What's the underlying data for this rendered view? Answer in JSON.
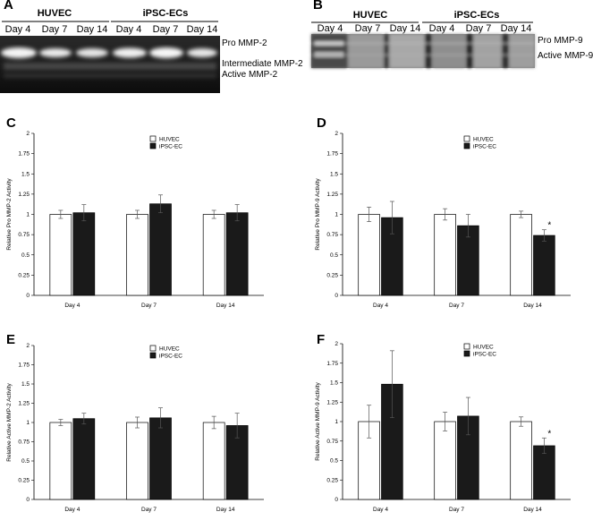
{
  "panels": {
    "a": {
      "letter": "A",
      "groups": [
        "HUVEC",
        "iPSC-ECs"
      ],
      "lanes": [
        "Day 4",
        "Day 7",
        "Day 14",
        "Day 4",
        "Day 7",
        "Day 14"
      ],
      "band_labels": [
        "Pro MMP-2",
        "Intermediate MMP-2",
        "Active MMP-2"
      ]
    },
    "b": {
      "letter": "B",
      "groups": [
        "HUVEC",
        "iPSC-ECs"
      ],
      "lanes": [
        "Day 4",
        "Day 7",
        "Day 14",
        "Day 4",
        "Day 7",
        "Day 14"
      ],
      "band_labels": [
        "Pro MMP-9",
        "Active MMP-9"
      ]
    }
  },
  "colors": {
    "huvec_fill": "#ffffff",
    "ipsc_fill": "#1a1a1a",
    "gel_dark": "#141414",
    "axis": "#000000"
  },
  "chart_data": [
    {
      "id": "C",
      "type": "bar",
      "ylabel": "Relative Pro MMP-2 Activity",
      "categories": [
        "Day 4",
        "Day 7",
        "Day 14"
      ],
      "ylim": [
        0,
        2
      ],
      "yticks": [
        "0",
        "0.25",
        "0.5",
        "0.75",
        "1",
        "1.25",
        "1.5",
        "1.75",
        "2"
      ],
      "series": [
        {
          "name": "HUVEC",
          "values": [
            1.0,
            1.0,
            1.0
          ],
          "errors": [
            0.05,
            0.05,
            0.05
          ]
        },
        {
          "name": "iPSC-EC",
          "values": [
            1.02,
            1.13,
            1.02
          ],
          "errors": [
            0.1,
            0.11,
            0.1
          ]
        }
      ],
      "significance": [
        "",
        "",
        ""
      ]
    },
    {
      "id": "D",
      "type": "bar",
      "ylabel": "Relative Pro MMP-9 Activity",
      "categories": [
        "Day 4",
        "Day 7",
        "Day 14"
      ],
      "ylim": [
        0,
        2
      ],
      "yticks": [
        "0",
        "0.25",
        "0.5",
        "0.75",
        "1",
        "1.25",
        "1.5",
        "1.75",
        "2"
      ],
      "series": [
        {
          "name": "HUVEC",
          "values": [
            1.0,
            1.0,
            1.0
          ],
          "errors": [
            0.09,
            0.07,
            0.04
          ]
        },
        {
          "name": "iPSC-EC",
          "values": [
            0.96,
            0.86,
            0.74
          ],
          "errors": [
            0.2,
            0.14,
            0.07
          ]
        }
      ],
      "significance": [
        "",
        "",
        "*"
      ]
    },
    {
      "id": "E",
      "type": "bar",
      "ylabel": "Relative Active MMP-2 Activity",
      "categories": [
        "Day 4",
        "Day 7",
        "Day 14"
      ],
      "ylim": [
        0,
        2
      ],
      "yticks": [
        "0",
        "0.25",
        "0.5",
        "0.75",
        "1",
        "1.25",
        "1.5",
        "1.75",
        "2"
      ],
      "series": [
        {
          "name": "HUVEC",
          "values": [
            1.0,
            1.0,
            1.0
          ],
          "errors": [
            0.04,
            0.07,
            0.08
          ]
        },
        {
          "name": "iPSC-EC",
          "values": [
            1.05,
            1.06,
            0.96
          ],
          "errors": [
            0.07,
            0.13,
            0.16
          ]
        }
      ],
      "significance": [
        "",
        "",
        ""
      ]
    },
    {
      "id": "F",
      "type": "bar",
      "ylabel": "Relative Active MMP-9 Activity",
      "categories": [
        "Day 4",
        "Day 7",
        "Day 14"
      ],
      "ylim": [
        0,
        2
      ],
      "yticks": [
        "0",
        "0.25",
        "0.5",
        "0.75",
        "1",
        "1.25",
        "1.5",
        "1.75",
        "2"
      ],
      "series": [
        {
          "name": "HUVEC",
          "values": [
            1.0,
            1.0,
            1.0
          ],
          "errors": [
            0.21,
            0.12,
            0.06
          ]
        },
        {
          "name": "iPSC-EC",
          "values": [
            1.48,
            1.07,
            0.69
          ],
          "errors": [
            0.43,
            0.24,
            0.1
          ]
        }
      ],
      "significance": [
        "",
        "",
        "*"
      ]
    }
  ]
}
